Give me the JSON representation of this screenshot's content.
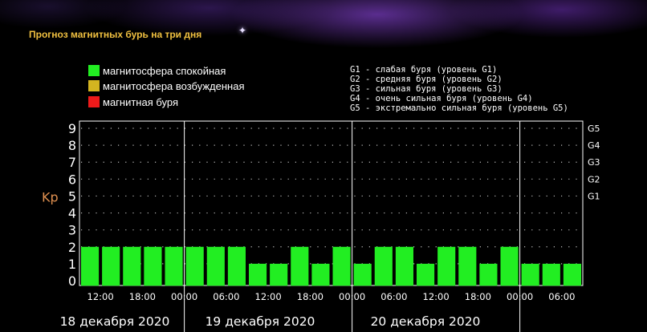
{
  "title": "Прогноз магнитных бурь на три дня",
  "legend": [
    {
      "label": "магнитосфера спокойная",
      "color": "#22ee22"
    },
    {
      "label": "магнитосфера возбужденная",
      "color": "#d4b420"
    },
    {
      "label": "магнитная буря",
      "color": "#ee1a1a"
    }
  ],
  "g_levels": [
    "G1 - слабая буря (уровень G1)",
    "G2 - средняя буря (уровень G2)",
    "G3 - сильная буря (уровень G3)",
    "G4 - очень сильная буря (уровень G4)",
    "G5 - экстремально сильная буря (уровень G5)"
  ],
  "chart_data": {
    "type": "bar",
    "ylabel": "Kp",
    "ylim": [
      0,
      9
    ],
    "yticks": [
      "0",
      "1",
      "2",
      "3",
      "4",
      "5",
      "6",
      "7",
      "8",
      "9"
    ],
    "g_scale_ticks": [
      {
        "value": 5,
        "label": "G1"
      },
      {
        "value": 6,
        "label": "G2"
      },
      {
        "value": 7,
        "label": "G3"
      },
      {
        "value": 8,
        "label": "G4"
      },
      {
        "value": 9,
        "label": "G5"
      }
    ],
    "time_labels": [
      "12:00",
      "18:00",
      "00:00",
      "06:00",
      "12:00",
      "18:00",
      "00:00",
      "06:00",
      "12:00",
      "18:00",
      "00:00",
      "06:00"
    ],
    "day_labels": [
      "18 декабря 2020",
      "19 декабря 2020",
      "20 декабря 2020"
    ],
    "series": [
      {
        "values": [
          2,
          2,
          2,
          2,
          2,
          2,
          2,
          2,
          1,
          1,
          2,
          1,
          2,
          1,
          2,
          2,
          1,
          2,
          2,
          1,
          2,
          1,
          1,
          1
        ]
      }
    ],
    "bar_color": "#22ee22",
    "grid": true
  }
}
